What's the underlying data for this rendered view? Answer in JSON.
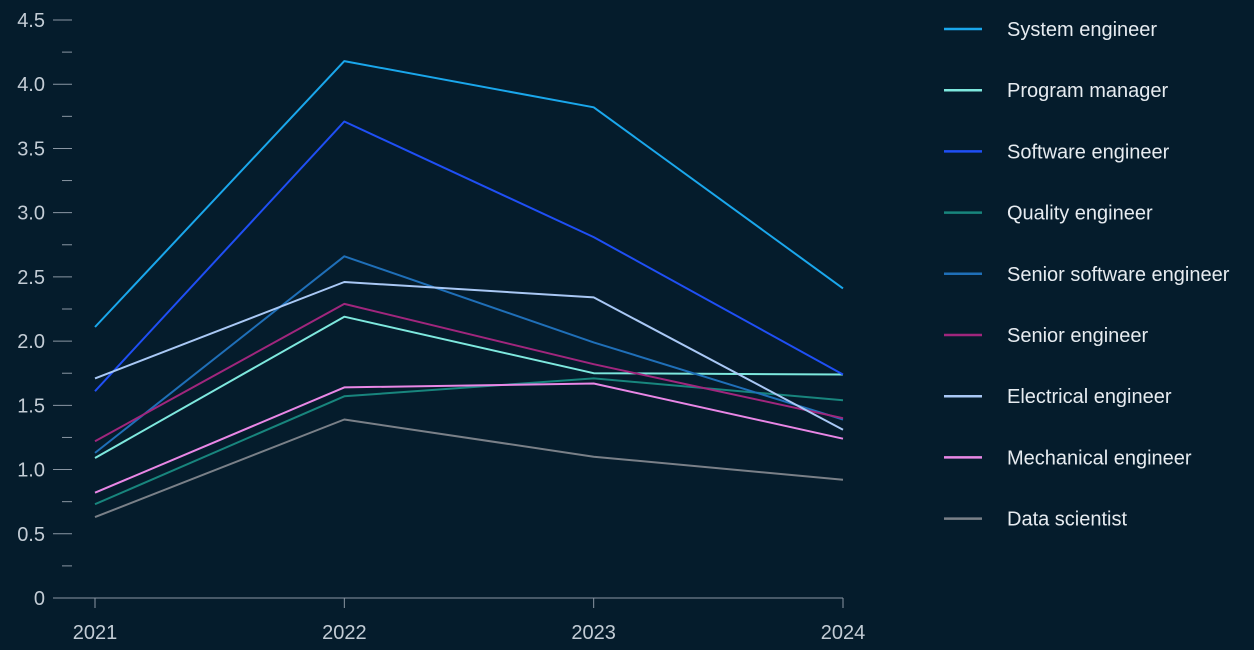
{
  "chart_data": {
    "type": "line",
    "x": [
      "2021",
      "2022",
      "2023",
      "2024"
    ],
    "ylim": [
      0,
      4.5
    ],
    "yticks": [
      {
        "value": 0,
        "label": "0"
      },
      {
        "value": 0.5,
        "label": "0.5"
      },
      {
        "value": 1.0,
        "label": "1.0"
      },
      {
        "value": 1.5,
        "label": "1.5"
      },
      {
        "value": 2.0,
        "label": "2.0"
      },
      {
        "value": 2.5,
        "label": "2.5"
      },
      {
        "value": 3.0,
        "label": "3.0"
      },
      {
        "value": 3.5,
        "label": "3.5"
      },
      {
        "value": 4.0,
        "label": "4.0"
      },
      {
        "value": 4.5,
        "label": "4.5"
      }
    ],
    "minor_ticks": [
      0.25,
      0.75,
      1.25,
      1.75,
      2.25,
      2.75,
      3.25,
      3.75,
      4.25
    ],
    "grid": false,
    "legend_position": "right",
    "title": "",
    "xlabel": "",
    "ylabel": "",
    "series": [
      {
        "name": "System engineer",
        "color": "#1aa7ec",
        "values": [
          2.11,
          4.18,
          3.82,
          2.41
        ]
      },
      {
        "name": "Program manager",
        "color": "#7ee8de",
        "values": [
          1.09,
          2.19,
          1.75,
          1.74
        ]
      },
      {
        "name": "Software engineer",
        "color": "#1f4ff5",
        "values": [
          1.61,
          3.71,
          2.81,
          1.74
        ]
      },
      {
        "name": "Quality engineer",
        "color": "#18857d",
        "values": [
          0.73,
          1.57,
          1.71,
          1.54
        ]
      },
      {
        "name": "Senior software engineer",
        "color": "#1f6fb8",
        "values": [
          1.13,
          2.66,
          1.99,
          1.39
        ]
      },
      {
        "name": "Senior engineer",
        "color": "#a0267d",
        "values": [
          1.22,
          2.29,
          1.82,
          1.4
        ]
      },
      {
        "name": "Electrical engineer",
        "color": "#a9c8f5",
        "values": [
          1.71,
          2.46,
          2.34,
          1.31
        ]
      },
      {
        "name": "Mechanical engineer",
        "color": "#e987e6",
        "values": [
          0.82,
          1.64,
          1.67,
          1.24
        ]
      },
      {
        "name": "Data scientist",
        "color": "#7a8088",
        "values": [
          0.63,
          1.39,
          1.1,
          0.92
        ]
      }
    ]
  },
  "colors": {
    "background": "#051c2c",
    "axis": "#8a96a3",
    "tick_text": "#c3ccd5",
    "legend_text": "#e6ebf0"
  }
}
